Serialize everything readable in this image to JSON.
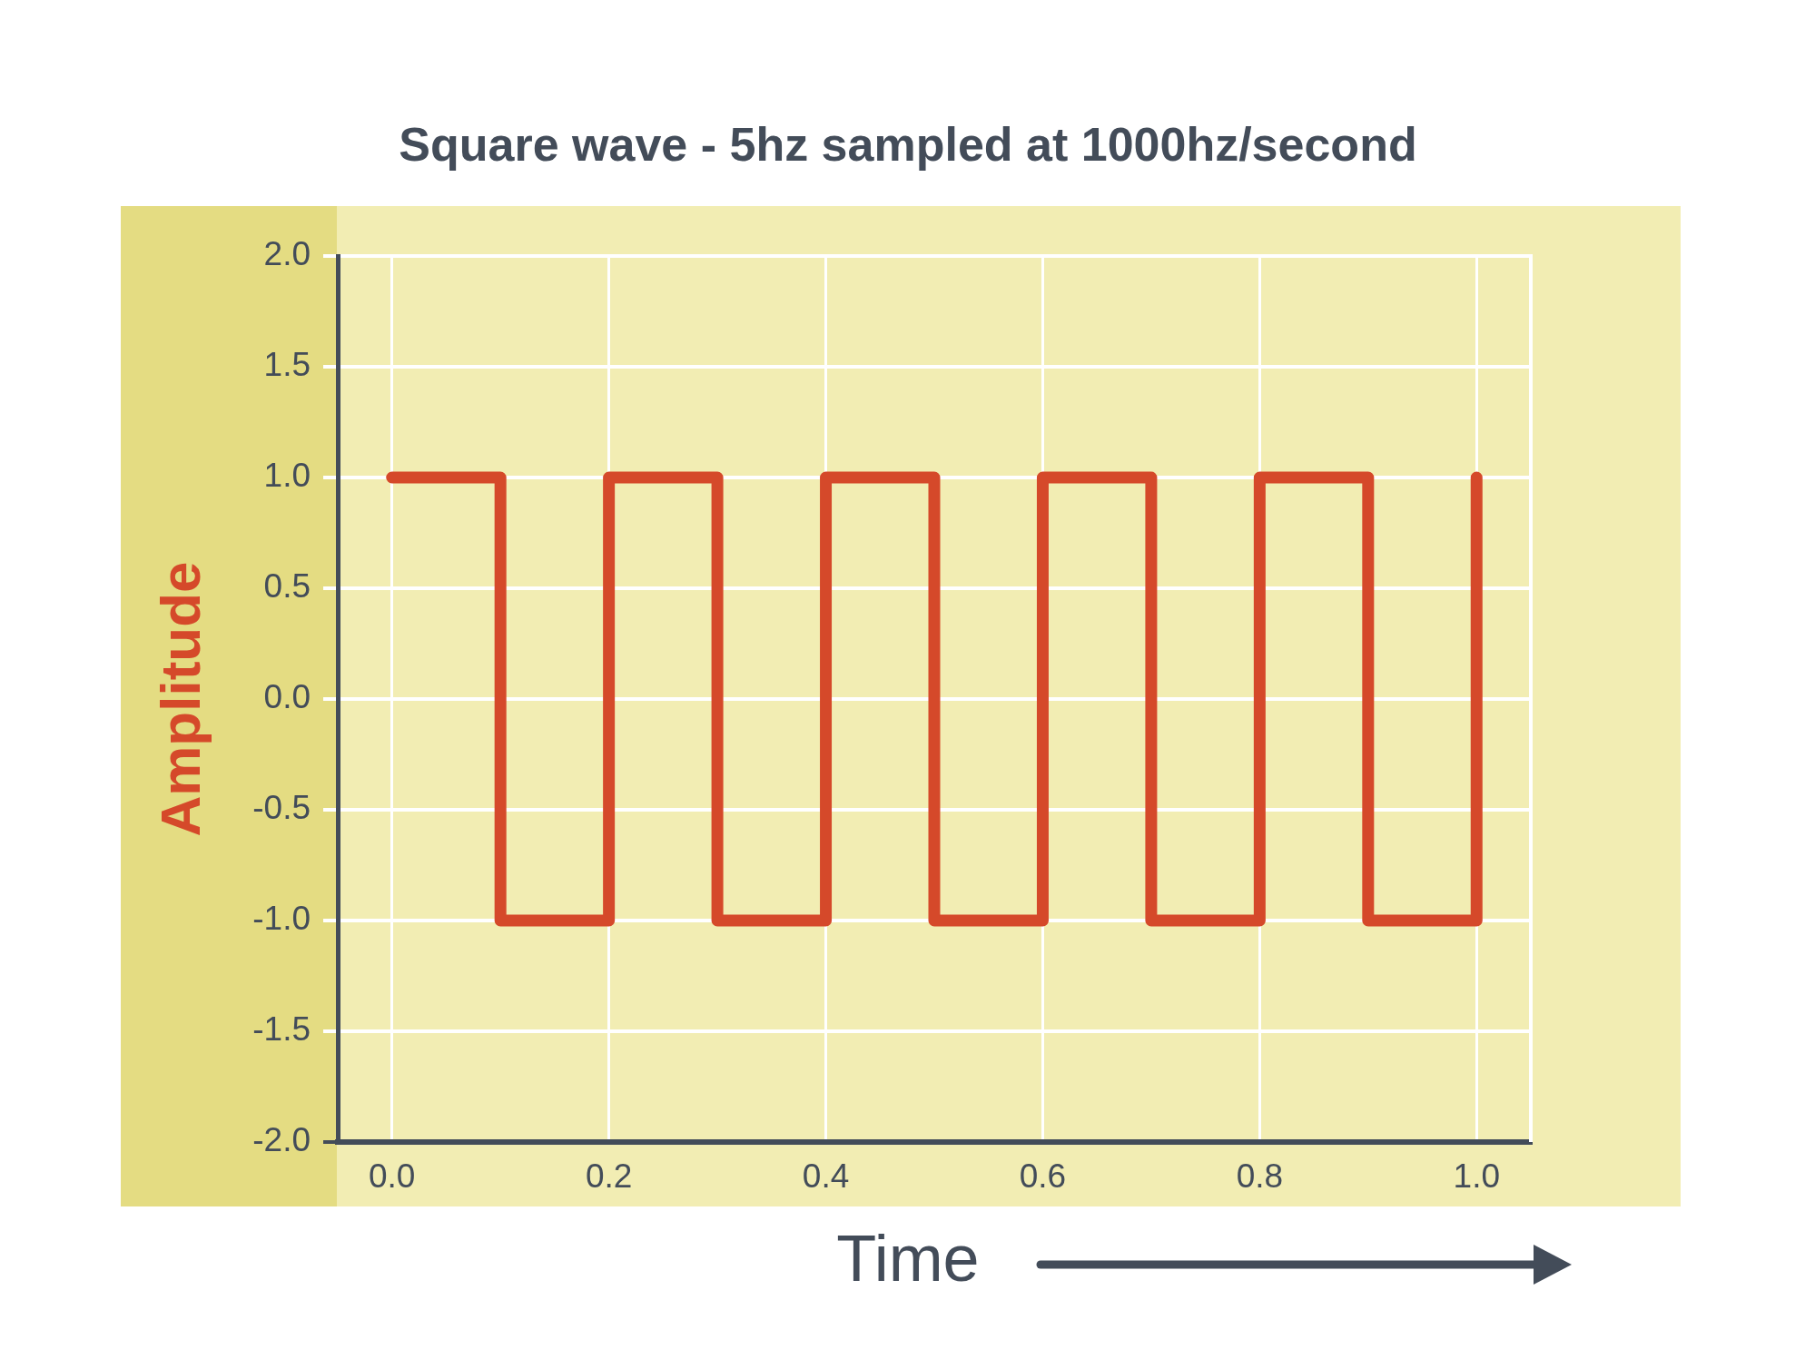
{
  "chart_data": {
    "type": "step",
    "title": "Square wave - 5hz sampled at 1000hz/second",
    "xlabel": "Time",
    "ylabel": "Amplitude",
    "x": [
      0,
      0.1,
      0.2,
      0.3,
      0.4,
      0.5,
      0.6,
      0.7,
      0.8,
      0.9,
      1
    ],
    "series": [
      {
        "color": "#d5492a",
        "values": [
          1,
          -1,
          1,
          -1,
          1,
          -1,
          1,
          -1,
          1,
          -1,
          1
        ]
      }
    ],
    "xlim": [
      -0.05,
      1.05
    ],
    "xticks": [
      {
        "value": 0,
        "label": "0.0"
      },
      0.2,
      0.4,
      0.6,
      0.8,
      {
        "value": 1,
        "label": "1.0"
      }
    ],
    "ylim": [
      -2,
      2
    ],
    "yticks": [
      {
        "value": -2,
        "label": "-2.0"
      },
      -1.5,
      {
        "value": -1,
        "label": "-1.0"
      },
      -0.5,
      {
        "value": 0,
        "label": "0.0"
      },
      0.5,
      {
        "value": 1,
        "label": "1.0"
      },
      1.5,
      {
        "value": 2,
        "label": "2.0"
      }
    ],
    "grid": true,
    "marker": "none",
    "line_style": "solid"
  }
}
